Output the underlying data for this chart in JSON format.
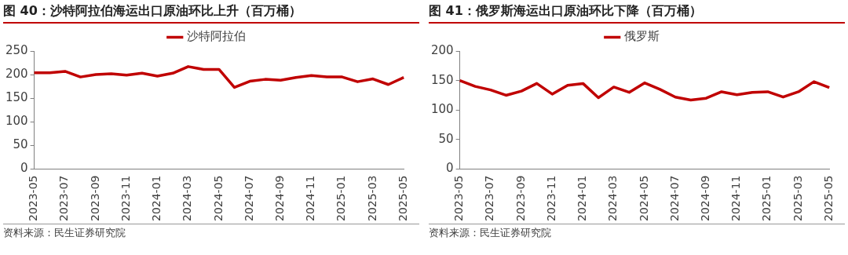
{
  "chart_data": [
    {
      "type": "line",
      "title": "图 40：沙特阿拉伯海运出口原油环比上升（百万桶）",
      "categories": [
        "2023-05",
        null,
        "2023-07",
        null,
        "2023-09",
        null,
        "2023-11",
        null,
        "2024-01",
        null,
        "2024-03",
        null,
        "2024-05",
        null,
        "2024-07",
        null,
        "2024-09",
        null,
        "2024-11",
        null,
        "2025-01",
        null,
        "2025-03",
        null,
        "2025-05"
      ],
      "series": [
        {
          "name": "沙特阿拉伯",
          "color": "#c00000",
          "values": [
            204,
            204,
            207,
            195,
            200,
            202,
            199,
            203,
            197,
            203,
            217,
            211,
            211,
            173,
            186,
            190,
            188,
            194,
            198,
            195,
            195,
            185,
            191,
            179,
            194
          ]
        }
      ],
      "ylim": [
        0,
        250
      ],
      "yticks": [
        0,
        50,
        100,
        150,
        200,
        250
      ],
      "grid": false,
      "legend": "top",
      "annotations": [
        "资料来源：民生证券研究院"
      ]
    },
    {
      "type": "line",
      "title": "图 41：俄罗斯海运出口原油环比下降（百万桶）",
      "categories": [
        "2023-05",
        null,
        "2023-07",
        null,
        "2023-09",
        null,
        "2023-11",
        null,
        "2024-01",
        null,
        "2024-03",
        null,
        "2024-05",
        null,
        "2024-07",
        null,
        "2024-09",
        null,
        "2024-11",
        null,
        "2025-01",
        null,
        "2025-03",
        null,
        "2025-05"
      ],
      "series": [
        {
          "name": "俄罗斯",
          "color": "#c00000",
          "values": [
            150,
            140,
            134,
            125,
            132,
            145,
            127,
            142,
            145,
            121,
            139,
            130,
            146,
            135,
            122,
            117,
            120,
            131,
            126,
            130,
            131,
            122,
            131,
            148,
            138
          ]
        }
      ],
      "ylim": [
        0,
        200
      ],
      "yticks": [
        0,
        50,
        100,
        150,
        200
      ],
      "grid": false,
      "legend": "top",
      "annotations": [
        "资料来源：民生证券研究院"
      ]
    }
  ]
}
